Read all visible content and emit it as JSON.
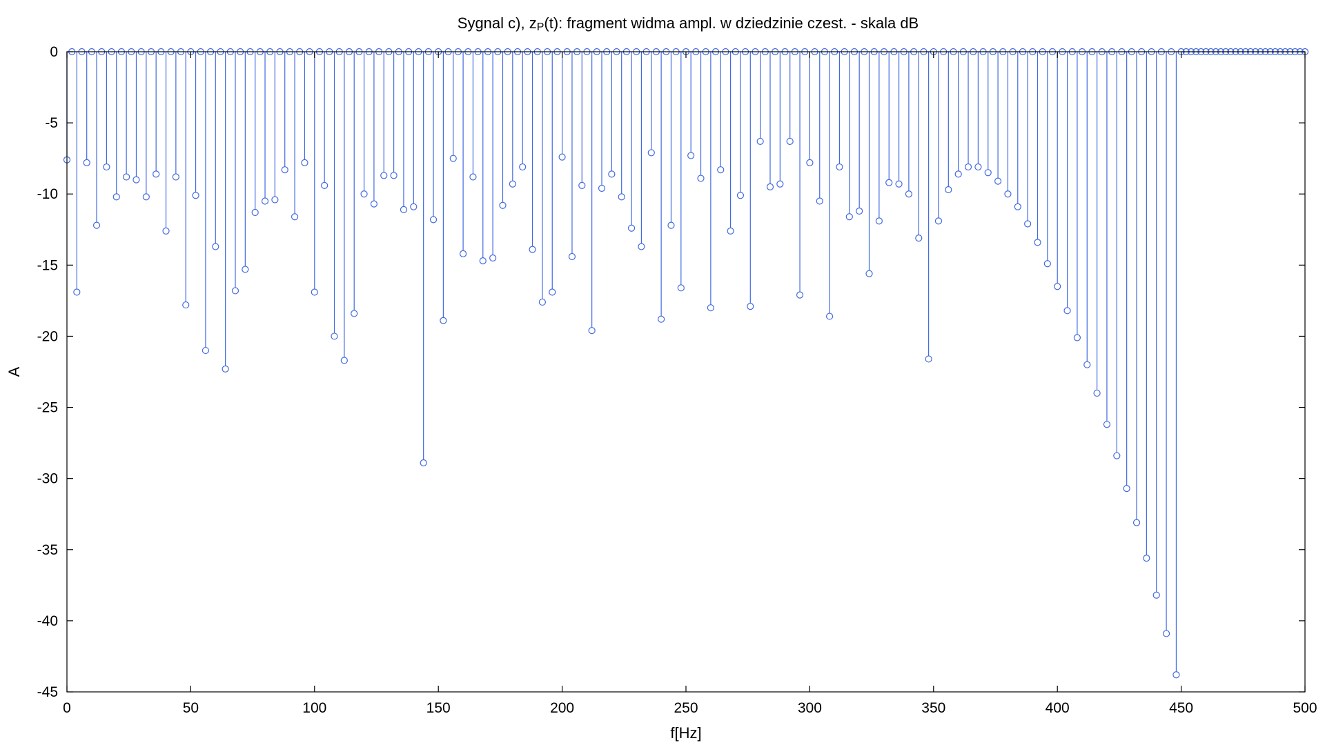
{
  "chart_data": {
    "type": "stem",
    "title": "Sygnal c), z",
    "title_sub": "P",
    "title_rest": "(t): fragment widma ampl. w dziedzinie czest. - skala dB",
    "xlabel": "f[Hz]",
    "ylabel": "A",
    "xlim": [
      0,
      500
    ],
    "ylim": [
      -45,
      0
    ],
    "xticks": [
      "0",
      "50",
      "100",
      "150",
      "200",
      "250",
      "300",
      "350",
      "400",
      "450",
      "500"
    ],
    "yticks": [
      "0",
      "-5",
      "-10",
      "-15",
      "-20",
      "-25",
      "-30",
      "-35",
      "-40",
      "-45"
    ],
    "grid": false,
    "color": "#4169e1",
    "marker": "circle",
    "harmonic_x": [
      0,
      4,
      8,
      12,
      16,
      20,
      24,
      28,
      32,
      36,
      40,
      44,
      48,
      52,
      56,
      60,
      64,
      68,
      72,
      76,
      80,
      84,
      88,
      92,
      96,
      100,
      104,
      108,
      112,
      116,
      120,
      124,
      128,
      132,
      136,
      140,
      144,
      148,
      152,
      156,
      160,
      164,
      168,
      172,
      176,
      180,
      184,
      188,
      192,
      196,
      200,
      204,
      208,
      212,
      216,
      220,
      224,
      228,
      232,
      236,
      240,
      244,
      248,
      252,
      256,
      260,
      264,
      268,
      272,
      276,
      280,
      284,
      288,
      292,
      296,
      300,
      304,
      308,
      312,
      316,
      320,
      324,
      328,
      332,
      336,
      340,
      344,
      348,
      352,
      356,
      360,
      364,
      368,
      372,
      376,
      380,
      384,
      388,
      392,
      396,
      400,
      404,
      408,
      412,
      416,
      420,
      424,
      428,
      432,
      436,
      440,
      444,
      448
    ],
    "harmonic_y": [
      -7.6,
      -16.9,
      -7.8,
      -12.2,
      -8.1,
      -10.2,
      -8.8,
      -9.0,
      -10.2,
      -8.6,
      -12.6,
      -8.8,
      -17.8,
      -10.1,
      -21.0,
      -13.7,
      -22.3,
      -16.8,
      -15.3,
      -11.3,
      -10.5,
      -10.4,
      -8.3,
      -11.6,
      -7.8,
      -16.9,
      -9.4,
      -20.0,
      -21.7,
      -18.4,
      -10.0,
      -10.7,
      -8.7,
      -8.7,
      -11.1,
      -10.9,
      -28.9,
      -11.8,
      -18.9,
      -7.5,
      -14.2,
      -8.8,
      -14.7,
      -14.5,
      -10.8,
      -9.3,
      -8.1,
      -13.9,
      -17.6,
      -16.9,
      -7.4,
      -14.4,
      -9.4,
      -19.6,
      -9.6,
      -8.6,
      -10.2,
      -12.4,
      -13.7,
      -7.1,
      -18.8,
      -12.2,
      -16.6,
      -7.3,
      -8.9,
      -18.0,
      -8.3,
      -12.6,
      -10.1,
      -17.9,
      -6.3,
      -9.5,
      -9.3,
      -6.3,
      -17.1,
      -7.8,
      -10.5,
      -18.6,
      -8.1,
      -11.6,
      -11.2,
      -15.6,
      -11.9,
      -9.2,
      -9.3,
      -10.0,
      -13.1,
      -21.6,
      -11.9,
      -9.7,
      -8.6,
      -8.1,
      -8.1,
      -8.5,
      -9.1,
      -10.0,
      -10.9,
      -12.1,
      -13.4,
      -14.9,
      -16.5,
      -18.2,
      -20.1,
      -22.0,
      -24.0,
      -26.2,
      -28.4,
      -30.7,
      -33.1,
      -35.6,
      -38.2,
      -40.9,
      -43.8
    ],
    "zero_x_range": [
      0,
      500
    ],
    "zero_x_step": 2,
    "zero_y": 0
  }
}
